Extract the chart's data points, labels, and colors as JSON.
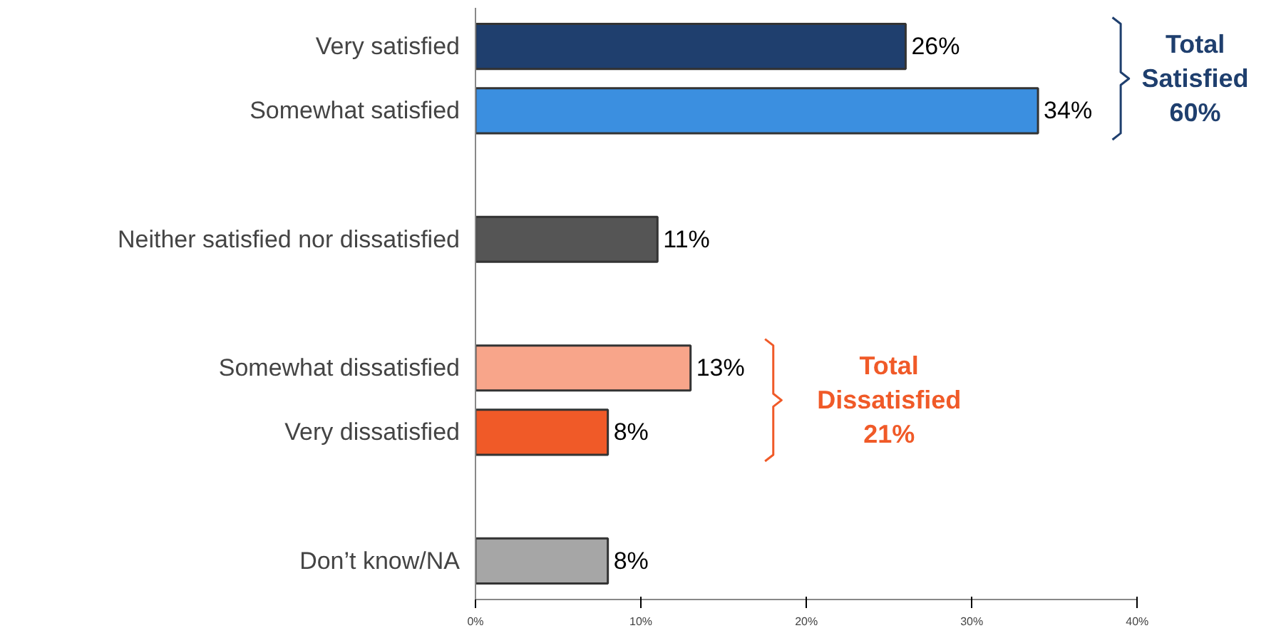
{
  "chart_data": {
    "type": "bar",
    "orientation": "horizontal",
    "categories": [
      "Very satisfied",
      "Somewhat satisfied",
      null,
      "Neither satisfied nor dissatisfied",
      null,
      "Somewhat dissatisfied",
      "Very dissatisfied",
      null,
      "Don’t know/NA"
    ],
    "values": [
      26,
      34,
      null,
      11,
      null,
      13,
      8,
      null,
      8
    ],
    "colors": [
      "#1f3f6e",
      "#3b8fe0",
      "#ffffff",
      "#555555",
      "#ffffff",
      "#f8a58a",
      "#f05a28",
      "#ffffff",
      "#a6a6a6"
    ],
    "value_labels": [
      "26%",
      "34%",
      null,
      "11%",
      null,
      "13%",
      "8%",
      null,
      "8%"
    ],
    "xlim": [
      0,
      40
    ],
    "xticks": [
      {
        "value": 0,
        "label": "0%"
      },
      {
        "value": 10,
        "label": "10%"
      },
      {
        "value": 20,
        "label": "20%"
      },
      {
        "value": 30,
        "label": "30%"
      },
      {
        "value": 40,
        "label": "40%"
      }
    ],
    "grid": false,
    "annotations": [
      "Total\nSatisfied\n60%",
      "Total\nDissatisfied\n21%"
    ]
  }
}
